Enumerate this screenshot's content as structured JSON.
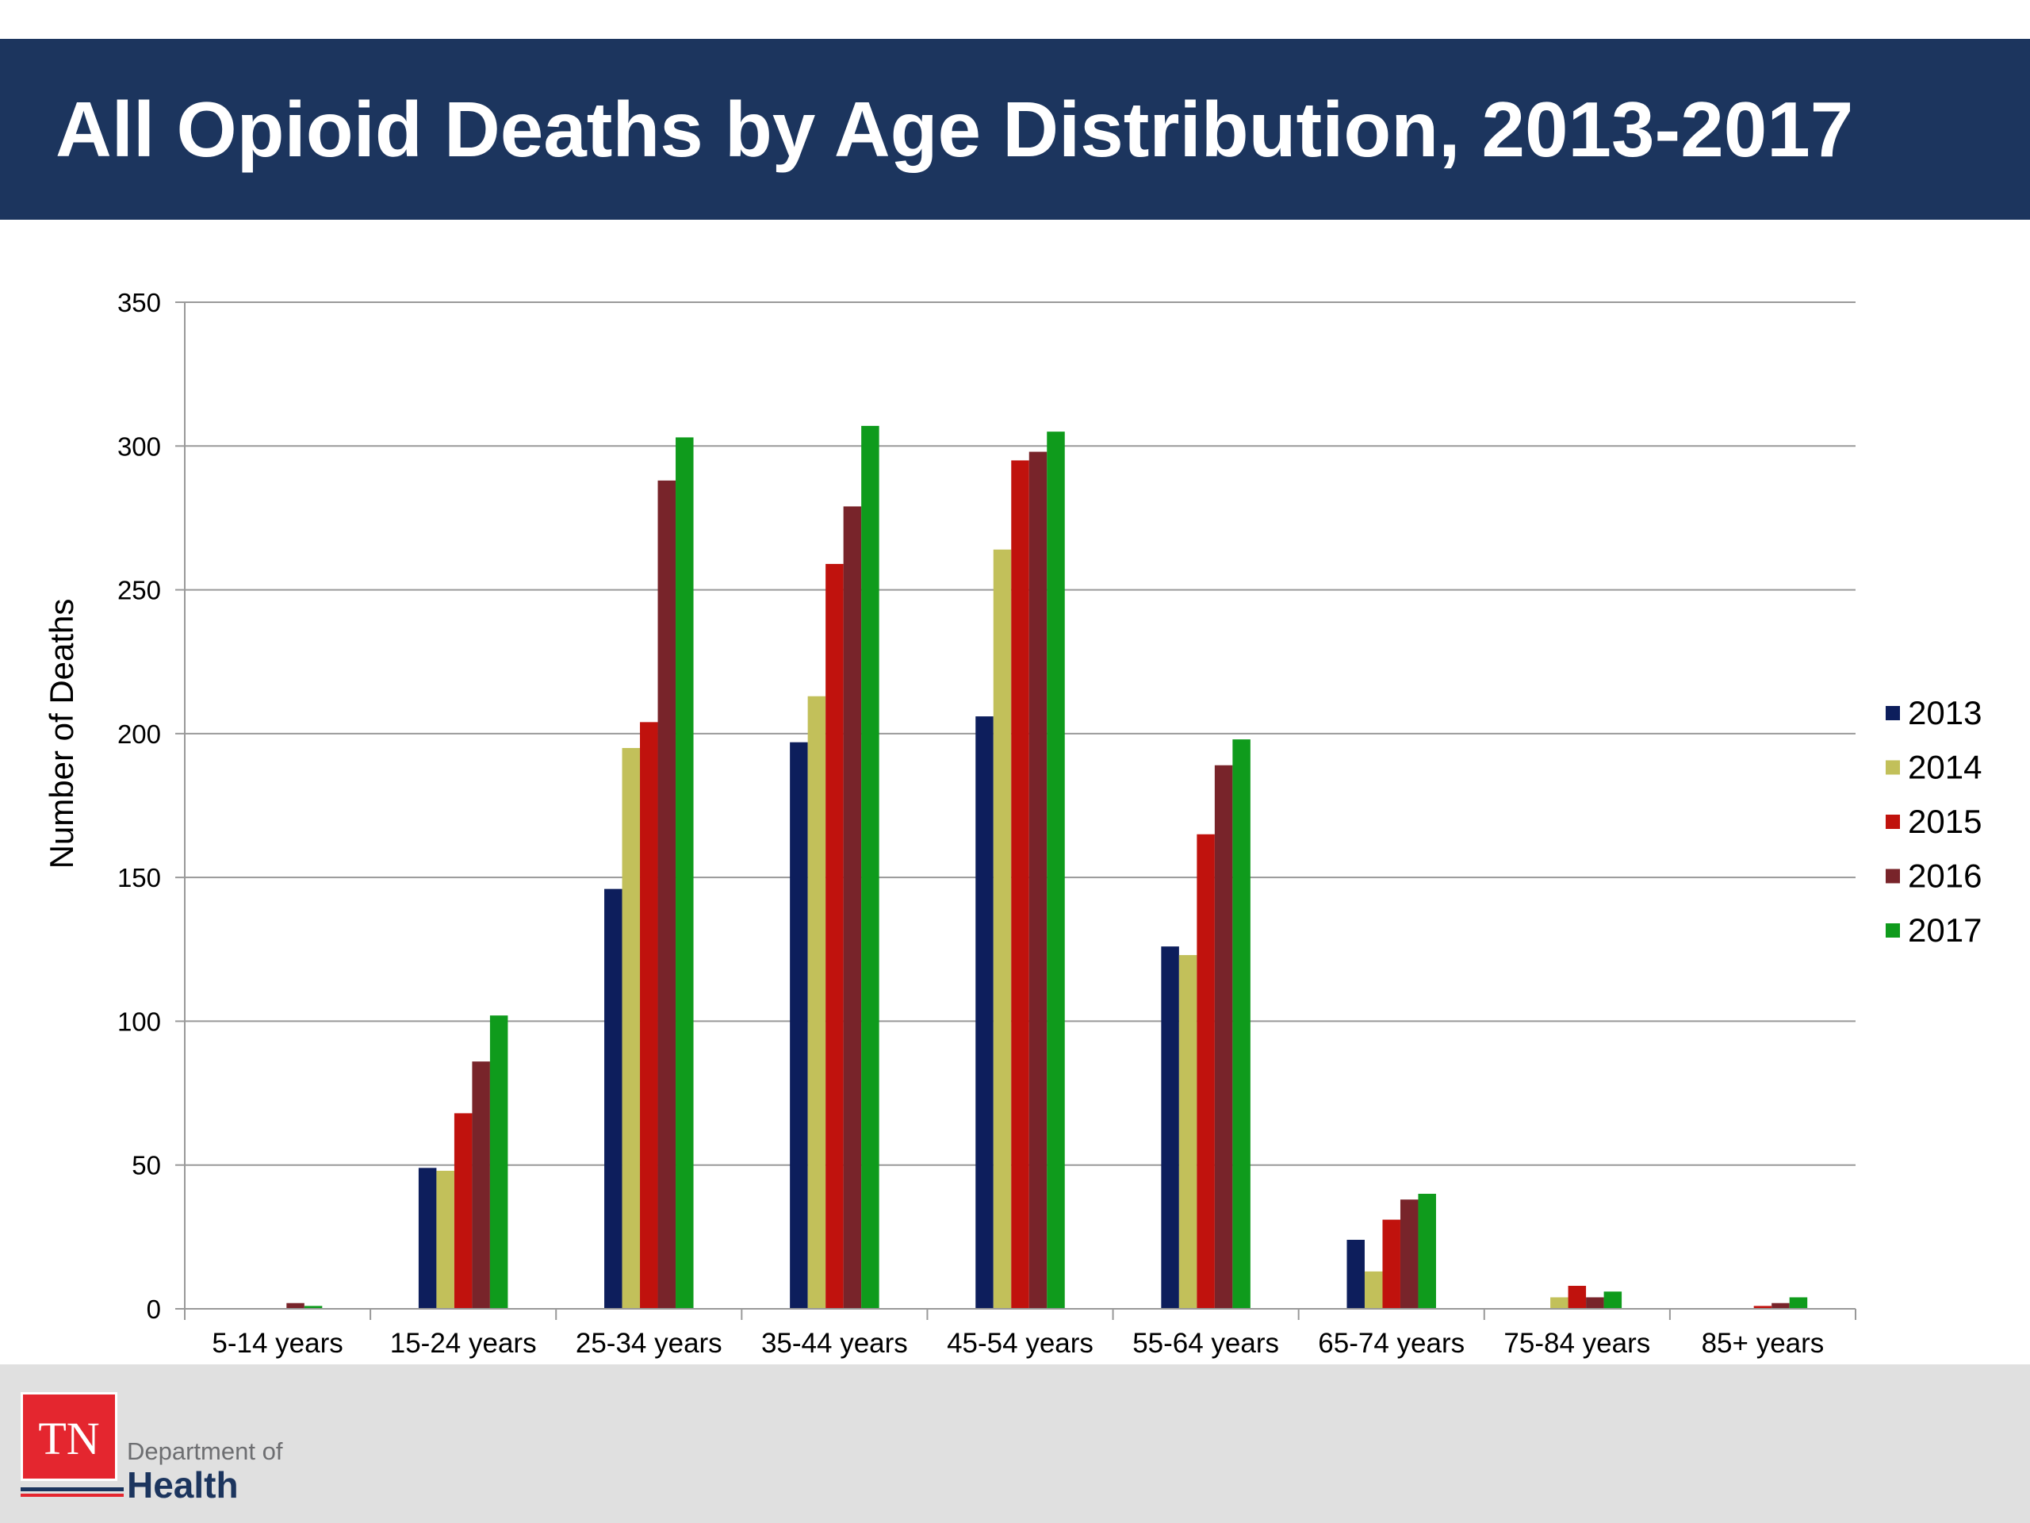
{
  "slide": {
    "title": "All Opioid Deaths by Age Distribution, 2013-2017"
  },
  "footer": {
    "logo_text": "TN",
    "department_line": "Department of",
    "health_line": "Health"
  },
  "chart_data": {
    "type": "bar",
    "title": "",
    "xlabel": "",
    "ylabel": "Number of Deaths",
    "ylim": [
      0,
      350
    ],
    "yticks": [
      0,
      50,
      100,
      150,
      200,
      250,
      300,
      350
    ],
    "grid": true,
    "legend_position": "right",
    "categories": [
      "5-14 years",
      "15-24 years",
      "25-34 years",
      "35-44 years",
      "45-54 years",
      "55-64 years",
      "65-74 years",
      "75-84 years",
      "85+ years"
    ],
    "series": [
      {
        "name": "2013",
        "color": "#0d1e5c",
        "values": [
          0,
          49,
          146,
          197,
          206,
          126,
          24,
          0,
          0
        ]
      },
      {
        "name": "2014",
        "color": "#c2c05a",
        "values": [
          0,
          48,
          195,
          213,
          264,
          123,
          13,
          4,
          0
        ]
      },
      {
        "name": "2015",
        "color": "#c0120d",
        "values": [
          0,
          68,
          204,
          259,
          295,
          165,
          31,
          8,
          1
        ]
      },
      {
        "name": "2016",
        "color": "#78242a",
        "values": [
          2,
          86,
          288,
          279,
          298,
          189,
          38,
          4,
          2
        ]
      },
      {
        "name": "2017",
        "color": "#0f9b1c",
        "values": [
          1,
          102,
          303,
          307,
          305,
          198,
          40,
          6,
          4
        ]
      }
    ]
  }
}
